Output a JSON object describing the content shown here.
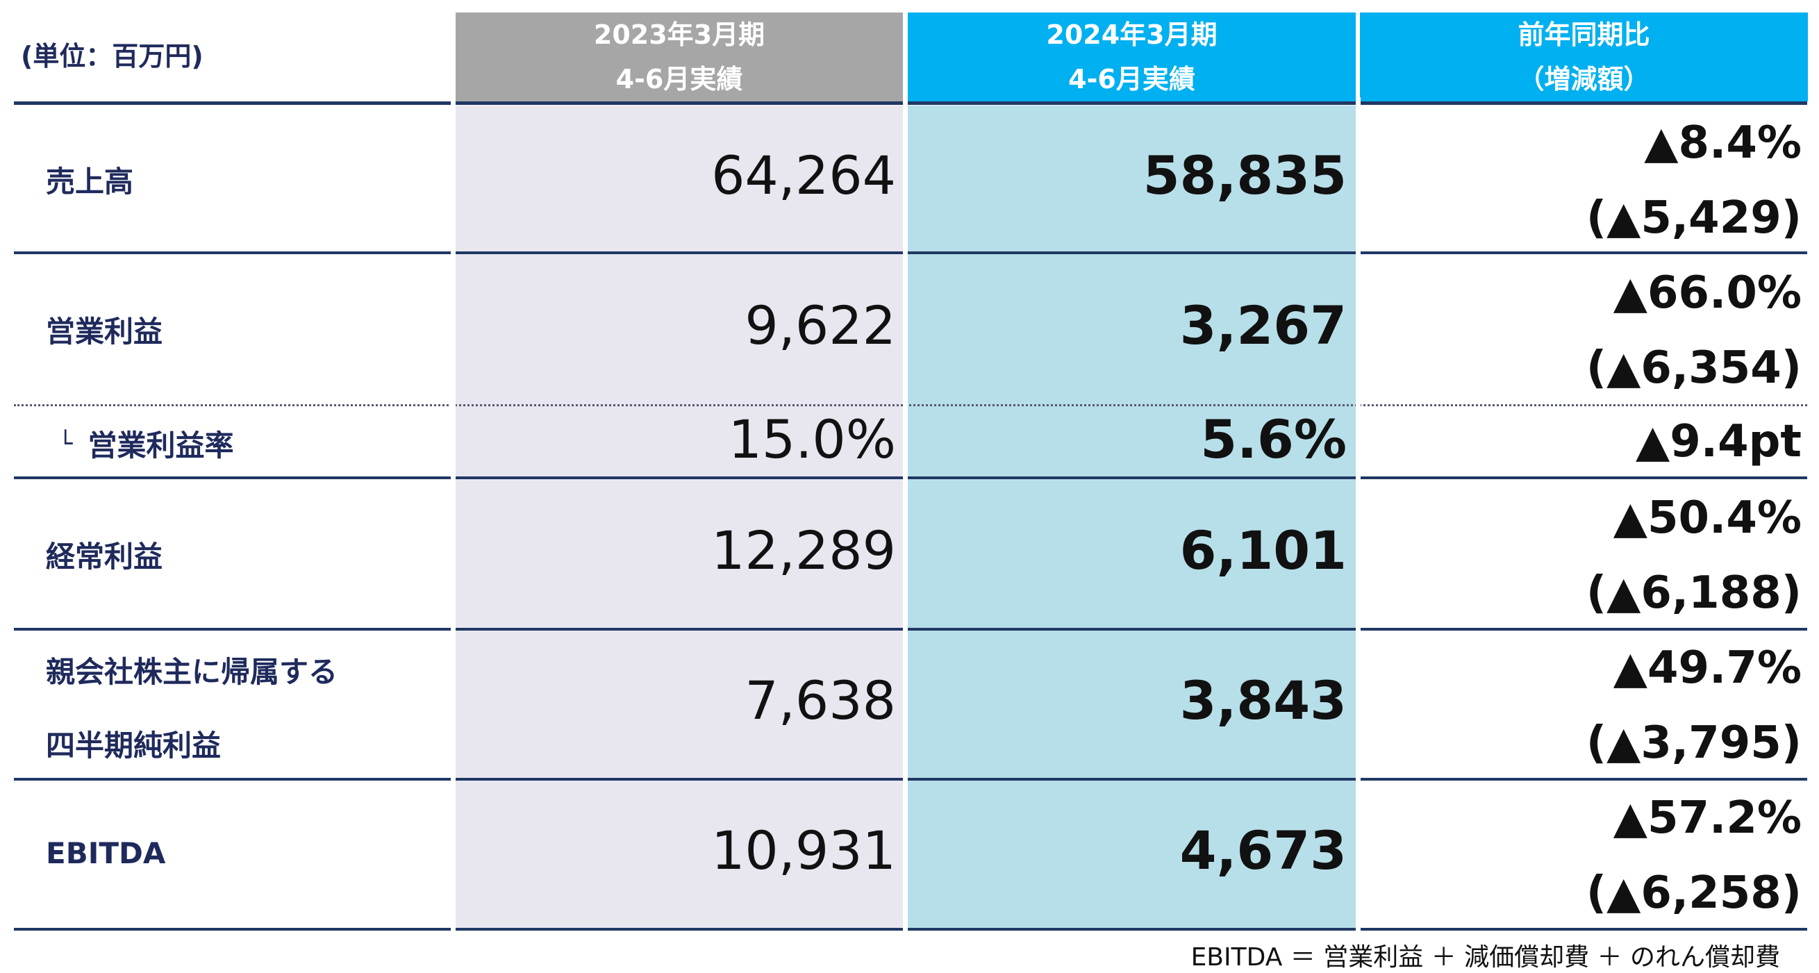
{
  "unit_label": "(単位：百万円)",
  "headers": {
    "prev": [
      "2023年3月期",
      "4-6月実績"
    ],
    "curr": [
      "2024年3月期",
      "4-6月実績"
    ],
    "diff": [
      "前年同期比",
      "（増減額）"
    ]
  },
  "rows": {
    "sales": {
      "label": "売上高",
      "prev": "64,264",
      "curr": "58,835",
      "diff_pct": "▲8.4%",
      "diff_amt": "(▲5,429)"
    },
    "operating_profit": {
      "label": "営業利益",
      "prev": "9,622",
      "curr": "3,267",
      "diff_pct": "▲66.0%",
      "diff_amt": "(▲6,354)"
    },
    "operating_margin": {
      "mark": "└",
      "label": "営業利益率",
      "prev": "15.0%",
      "curr": "5.6%",
      "diff": "▲9.4pt"
    },
    "ordinary_profit": {
      "label": "経常利益",
      "prev": "12,289",
      "curr": "6,101",
      "diff_pct": "▲50.4%",
      "diff_amt": "(▲6,188)"
    },
    "net_profit": {
      "label_line1": "親会社株主に帰属する",
      "label_line2": "四半期純利益",
      "prev": "7,638",
      "curr": "3,843",
      "diff_pct": "▲49.7%",
      "diff_amt": "(▲3,795)"
    },
    "ebitda": {
      "label": "EBITDA",
      "prev": "10,931",
      "curr": "4,673",
      "diff_pct": "▲57.2%",
      "diff_amt": "(▲6,258)"
    }
  },
  "footnote": "EBITDA ＝ 営業利益 ＋ 減価償却費 ＋ のれん償却費",
  "colors": {
    "header_prev": "#a6a6a6",
    "header_curr": "#00b0f0",
    "col_prev_bg": "#e8e6ef",
    "col_curr_bg": "#b7dfe9",
    "rule": "#1f3864",
    "label_text": "#1f2a5c"
  }
}
